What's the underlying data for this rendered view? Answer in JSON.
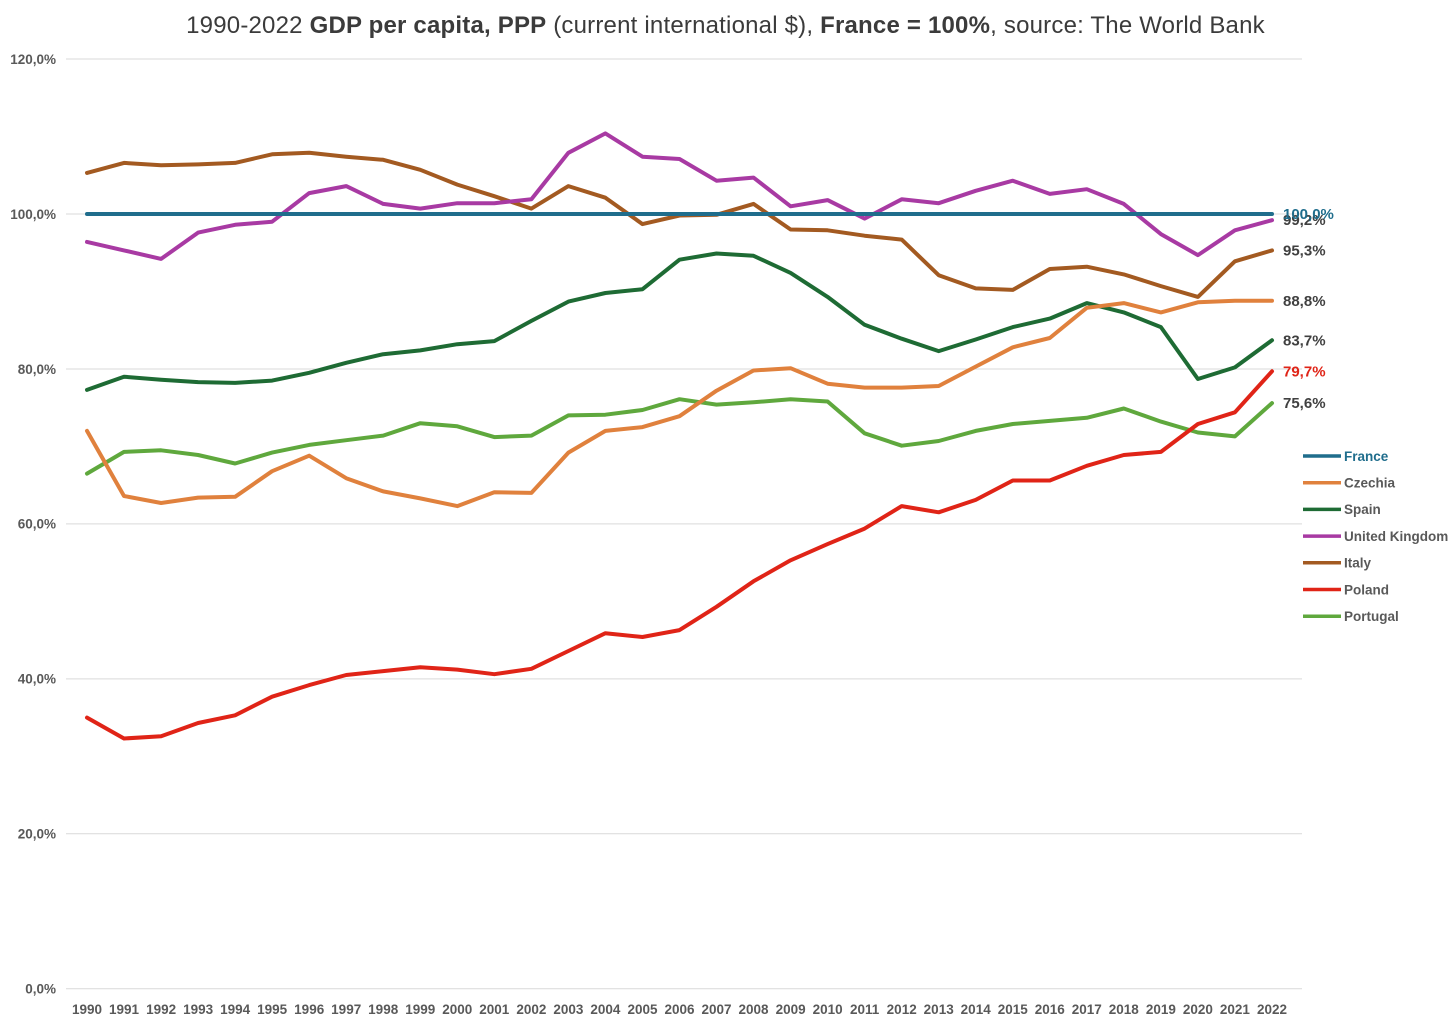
{
  "title": {
    "part1": "1990-2022 ",
    "part2": "GDP per capita, PPP",
    "part3": " (current international $), ",
    "part4": "France = 100%",
    "part5": ", source: The World Bank"
  },
  "colors": {
    "grid": "#D9D9D9",
    "axis_text": "#595959",
    "title_text": "#3B3B3B",
    "end_label_default": "#404040"
  },
  "legend": {
    "position": "right",
    "items": [
      {
        "id": "france",
        "label": "France"
      },
      {
        "id": "czechia",
        "label": "Czechia"
      },
      {
        "id": "spain",
        "label": "Spain"
      },
      {
        "id": "united_kingdom",
        "label": "United Kingdom"
      },
      {
        "id": "italy",
        "label": "Italy"
      },
      {
        "id": "poland",
        "label": "Poland"
      },
      {
        "id": "portugal",
        "label": "Portugal"
      }
    ]
  },
  "chart_data": {
    "type": "line",
    "title": "1990-2022 GDP per capita, PPP (current international $), France = 100%, source: The World Bank",
    "xlabel": "",
    "ylabel": "",
    "grid": "horizontal",
    "legend_position": "right",
    "ylim": [
      0,
      120
    ],
    "y_axis_ticks": [
      {
        "label": "120,0%",
        "value": 120
      },
      {
        "label": "100,0%",
        "value": 100
      },
      {
        "label": "80,0%",
        "value": 80
      },
      {
        "label": "60,0%",
        "value": 60
      },
      {
        "label": "40,0%",
        "value": 40
      },
      {
        "label": "20,0%",
        "value": 20
      },
      {
        "label": "0,0%",
        "value": 0
      }
    ],
    "x": [
      1990,
      1991,
      1992,
      1993,
      1994,
      1995,
      1996,
      1997,
      1998,
      1999,
      2000,
      2001,
      2002,
      2003,
      2004,
      2005,
      2006,
      2007,
      2008,
      2009,
      2010,
      2011,
      2012,
      2013,
      2014,
      2015,
      2016,
      2017,
      2018,
      2019,
      2020,
      2021,
      2022
    ],
    "series": [
      {
        "id": "france",
        "name": "France",
        "color": "#1F6D8C",
        "end_label": "100,0%",
        "end_label_color": "#1F6D8C",
        "legend_text_color": "#1F6D8C",
        "values": [
          100,
          100,
          100,
          100,
          100,
          100,
          100,
          100,
          100,
          100,
          100,
          100,
          100,
          100,
          100,
          100,
          100,
          100,
          100,
          100,
          100,
          100,
          100,
          100,
          100,
          100,
          100,
          100,
          100,
          100,
          100,
          100,
          100
        ]
      },
      {
        "id": "czechia",
        "name": "Czechia",
        "color": "#E0813D",
        "end_label": "88,8%",
        "end_label_color": "#404040",
        "legend_text_color": "#595959",
        "values": [
          72.0,
          63.6,
          62.7,
          63.4,
          63.5,
          66.8,
          68.8,
          65.9,
          64.2,
          63.3,
          62.3,
          64.1,
          64.0,
          69.2,
          72.0,
          72.5,
          73.9,
          77.2,
          79.8,
          80.1,
          78.1,
          77.6,
          77.6,
          77.8,
          80.3,
          82.8,
          84.0,
          87.9,
          88.5,
          87.3,
          88.6,
          88.8,
          88.8
        ]
      },
      {
        "id": "spain",
        "name": "Spain",
        "color": "#1E6B34",
        "end_label": "83,7%",
        "end_label_color": "#404040",
        "legend_text_color": "#595959",
        "values": [
          77.3,
          79.0,
          78.6,
          78.3,
          78.2,
          78.5,
          79.5,
          80.8,
          81.9,
          82.4,
          83.2,
          83.6,
          86.2,
          88.7,
          89.8,
          90.3,
          94.1,
          94.9,
          94.6,
          92.4,
          89.3,
          85.7,
          83.9,
          82.3,
          83.8,
          85.4,
          86.5,
          88.5,
          87.3,
          85.4,
          78.7,
          80.2,
          83.7
        ]
      },
      {
        "id": "united_kingdom",
        "name": "United Kingdom",
        "color": "#A83AA3",
        "end_label": "99,2%",
        "end_label_color": "#404040",
        "legend_text_color": "#595959",
        "values": [
          96.4,
          95.3,
          94.2,
          97.6,
          98.6,
          99.0,
          102.7,
          103.6,
          101.3,
          100.7,
          101.4,
          101.4,
          101.9,
          107.9,
          110.4,
          107.4,
          107.1,
          104.3,
          104.7,
          101.0,
          101.8,
          99.4,
          101.9,
          101.4,
          103.0,
          104.3,
          102.6,
          103.2,
          101.3,
          97.4,
          94.7,
          97.9,
          99.2
        ]
      },
      {
        "id": "italy",
        "name": "Italy",
        "color": "#A35A21",
        "end_label": "95,3%",
        "end_label_color": "#404040",
        "legend_text_color": "#595959",
        "values": [
          105.3,
          106.6,
          106.3,
          106.4,
          106.6,
          107.7,
          107.9,
          107.4,
          107.0,
          105.7,
          103.8,
          102.3,
          100.7,
          103.6,
          102.1,
          98.7,
          99.8,
          99.9,
          101.3,
          98.0,
          97.9,
          97.2,
          96.7,
          92.1,
          90.4,
          90.2,
          92.9,
          93.2,
          92.2,
          90.7,
          89.3,
          93.9,
          95.3
        ]
      },
      {
        "id": "poland",
        "name": "Poland",
        "color": "#E02417",
        "end_label": "79,7%",
        "end_label_color": "#E02417",
        "legend_text_color": "#595959",
        "values": [
          35.0,
          32.3,
          32.6,
          34.3,
          35.3,
          37.7,
          39.2,
          40.5,
          41.0,
          41.5,
          41.2,
          40.6,
          41.3,
          43.6,
          45.9,
          45.4,
          46.3,
          49.3,
          52.6,
          55.3,
          57.4,
          59.4,
          62.3,
          61.5,
          63.1,
          65.6,
          65.6,
          67.5,
          68.9,
          69.3,
          72.9,
          74.4,
          79.7
        ]
      },
      {
        "id": "portugal",
        "name": "Portugal",
        "color": "#5FA83D",
        "end_label": "75,6%",
        "end_label_color": "#404040",
        "legend_text_color": "#595959",
        "values": [
          66.5,
          69.3,
          69.5,
          68.9,
          67.8,
          69.2,
          70.2,
          70.8,
          71.4,
          73.0,
          72.6,
          71.2,
          71.4,
          74.0,
          74.1,
          74.7,
          76.1,
          75.4,
          75.7,
          76.1,
          75.8,
          71.7,
          70.1,
          70.7,
          72.0,
          72.9,
          73.3,
          73.7,
          74.9,
          73.2,
          71.8,
          71.3,
          75.6
        ]
      }
    ],
    "draw_order": [
      "portugal",
      "poland",
      "italy",
      "united_kingdom",
      "spain",
      "czechia",
      "france"
    ],
    "end_label_order": [
      "portugal",
      "poland",
      "spain",
      "czechia",
      "italy",
      "united_kingdom",
      "france"
    ]
  }
}
